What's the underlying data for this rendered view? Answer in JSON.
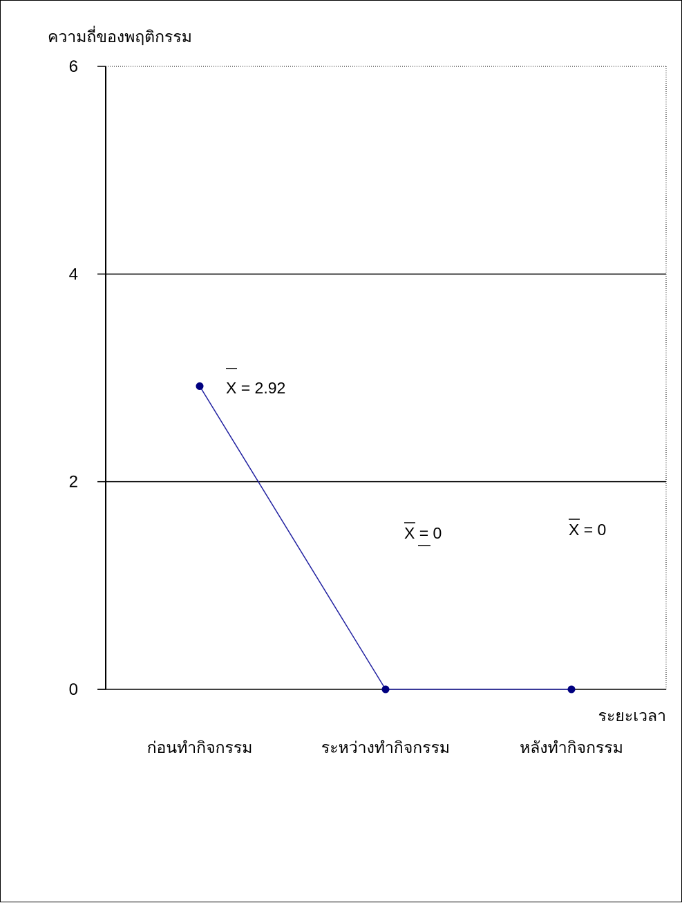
{
  "chart_data": {
    "type": "line",
    "ylabel": "ความถี่ของพฤติกรรม",
    "xlabel": "ระยะเวลา",
    "categories": [
      "ก่อนทำกิจกรรม",
      "ระหว่างทำกิจกรรม",
      "หลังทำกิจกรรม"
    ],
    "series": [
      {
        "values": [
          2.92,
          0,
          0
        ],
        "color": "#2020a0",
        "marker_color": "#000080"
      }
    ],
    "annotations": [
      "X = 2.92",
      "X = 0",
      "X = 0"
    ],
    "ylim": [
      0,
      6
    ],
    "yticks": [
      0,
      2,
      4,
      6
    ],
    "grid": true
  }
}
